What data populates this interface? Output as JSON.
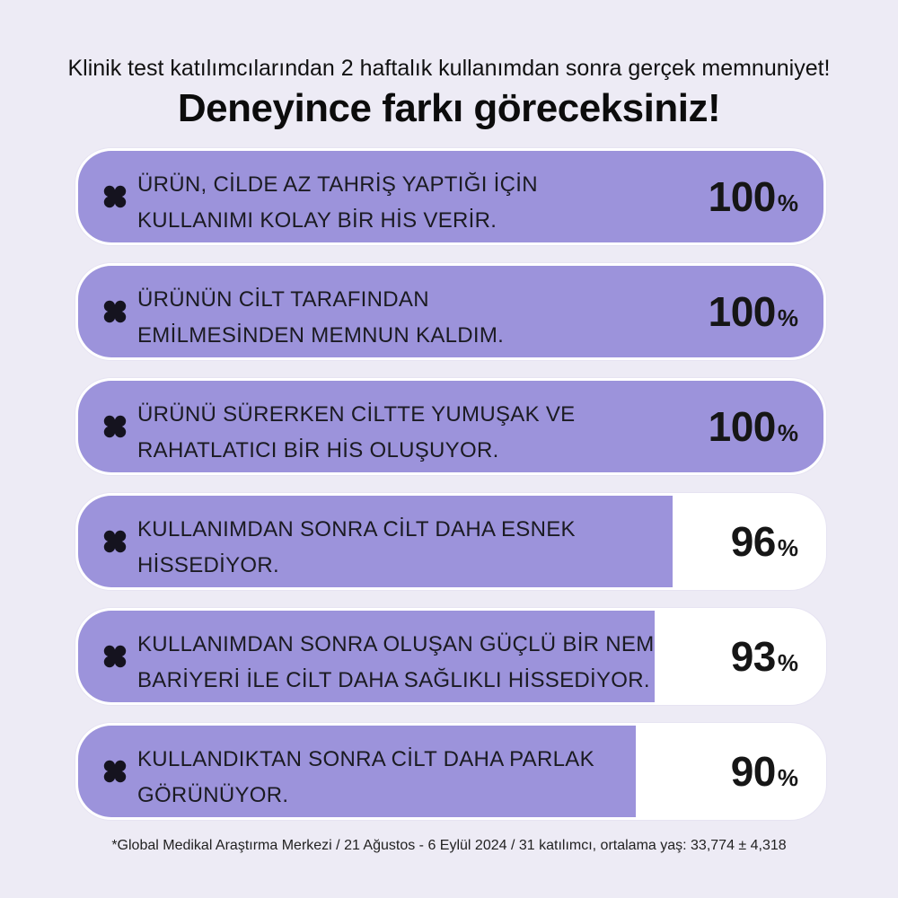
{
  "header": {
    "subtitle": "Klinik test katılımcılarından 2 haftalık kullanımdan sonra gerçek memnuniyet!",
    "title": "Deneyince farkı göreceksiniz!"
  },
  "colors": {
    "fill": "#9c93db",
    "track": "#ffffff",
    "background": "#edebf5"
  },
  "chart_data": {
    "type": "bar",
    "orientation": "horizontal",
    "unit": "%",
    "xlim": [
      0,
      100
    ],
    "categories": [
      [
        "ÜRÜN, CİLDE AZ TAHRİŞ YAPTIĞI İÇİN",
        "KULLANIMI KOLAY BİR HİS VERİR."
      ],
      [
        "ÜRÜNÜN CİLT TARAFINDAN",
        "EMİLMESİNDEN MEMNUN KALDIM."
      ],
      [
        "ÜRÜNÜ SÜRERKEN CİLTTE YUMUŞAK VE",
        "RAHATLATICI BİR HİS OLUŞUYOR."
      ],
      [
        "KULLANIMDAN SONRA CİLT DAHA ESNEK",
        "HİSSEDİYOR."
      ],
      [
        "KULLANIMDAN SONRA OLUŞAN GÜÇLÜ BİR NEM",
        "BARİYERİ İLE CİLT DAHA SAĞLIKLI HİSSEDİYOR."
      ],
      [
        "KULLANDIKTAN SONRA CİLT DAHA PARLAK",
        "GÖRÜNÜYOR."
      ]
    ],
    "values": [
      100,
      100,
      100,
      96,
      93,
      90
    ],
    "value_labels": [
      "100",
      "100",
      "100",
      "96",
      "93",
      "90"
    ],
    "title": "Deneyince farkı göreceksiniz!",
    "icon": "clover-icon"
  },
  "footnote": "*Global Medikal Araştırma Merkezi / 21 Ağustos - 6 Eylül 2024 / 31 katılımcı, ortalama yaş: 33,774 ± 4,318"
}
